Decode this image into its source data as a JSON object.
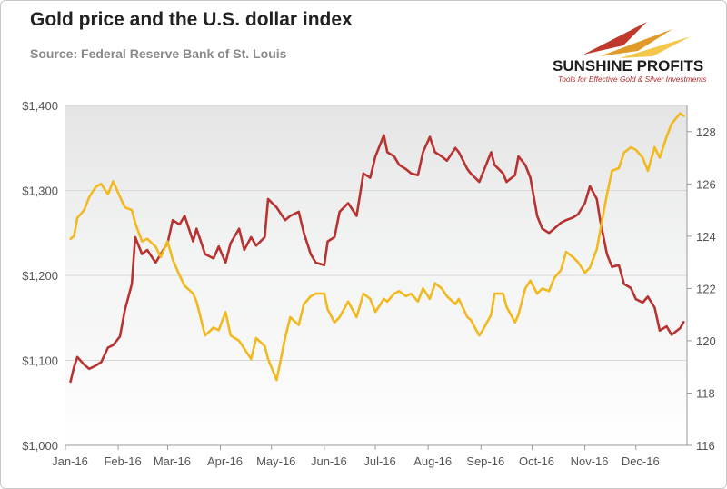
{
  "header": {
    "title": "Gold price and the U.S. dollar index",
    "subtitle": "Source: Federal Reserve Bank of St. Louis"
  },
  "logo": {
    "name": "SUNSHINE PROFITS",
    "tagline": "Tools for Effective Gold & Silver Investments"
  },
  "chart_data": {
    "type": "line",
    "title": "Gold price and the U.S. dollar index",
    "subtitle": "Source: Federal Reserve Bank of St. Louis",
    "x_ticks": [
      "Jan-16",
      "Feb-16",
      "Mar-16",
      "Apr-16",
      "May-16",
      "Jun-16",
      "Jul-16",
      "Aug-16",
      "Sep-16",
      "Oct-16",
      "Nov-16",
      "Dec-16"
    ],
    "y_left": {
      "ylim": [
        1000,
        1400
      ],
      "ticks": [
        "$1,000",
        "$1,100",
        "$1,200",
        "$1,300",
        "$1,400"
      ]
    },
    "y_right": {
      "ylim": [
        116,
        129
      ],
      "ticks": [
        "116",
        "118",
        "120",
        "122",
        "124",
        "126",
        "128"
      ]
    },
    "legend": "none",
    "series": [
      {
        "axis": "left",
        "color": "#b83232",
        "points": [
          [
            "2016-01-04",
            1075
          ],
          [
            "2016-01-06",
            1092
          ],
          [
            "2016-01-08",
            1104
          ],
          [
            "2016-01-12",
            1095
          ],
          [
            "2016-01-15",
            1090
          ],
          [
            "2016-01-19",
            1094
          ],
          [
            "2016-01-22",
            1098
          ],
          [
            "2016-01-26",
            1115
          ],
          [
            "2016-01-29",
            1118
          ],
          [
            "2016-02-02",
            1128
          ],
          [
            "2016-02-05",
            1160
          ],
          [
            "2016-02-09",
            1190
          ],
          [
            "2016-02-11",
            1245
          ],
          [
            "2016-02-15",
            1225
          ],
          [
            "2016-02-18",
            1230
          ],
          [
            "2016-02-23",
            1215
          ],
          [
            "2016-02-26",
            1225
          ],
          [
            "2016-03-01",
            1238
          ],
          [
            "2016-03-04",
            1265
          ],
          [
            "2016-03-08",
            1260
          ],
          [
            "2016-03-11",
            1270
          ],
          [
            "2016-03-16",
            1240
          ],
          [
            "2016-03-18",
            1255
          ],
          [
            "2016-03-23",
            1225
          ],
          [
            "2016-03-28",
            1220
          ],
          [
            "2016-03-31",
            1234
          ],
          [
            "2016-04-04",
            1215
          ],
          [
            "2016-04-07",
            1238
          ],
          [
            "2016-04-12",
            1255
          ],
          [
            "2016-04-15",
            1230
          ],
          [
            "2016-04-19",
            1245
          ],
          [
            "2016-04-22",
            1235
          ],
          [
            "2016-04-27",
            1245
          ],
          [
            "2016-04-29",
            1290
          ],
          [
            "2016-05-04",
            1280
          ],
          [
            "2016-05-09",
            1265
          ],
          [
            "2016-05-12",
            1270
          ],
          [
            "2016-05-17",
            1275
          ],
          [
            "2016-05-20",
            1250
          ],
          [
            "2016-05-24",
            1225
          ],
          [
            "2016-05-27",
            1215
          ],
          [
            "2016-06-01",
            1212
          ],
          [
            "2016-06-03",
            1240
          ],
          [
            "2016-06-07",
            1245
          ],
          [
            "2016-06-10",
            1275
          ],
          [
            "2016-06-15",
            1285
          ],
          [
            "2016-06-20",
            1270
          ],
          [
            "2016-06-24",
            1320
          ],
          [
            "2016-06-28",
            1315
          ],
          [
            "2016-07-01",
            1340
          ],
          [
            "2016-07-06",
            1365
          ],
          [
            "2016-07-08",
            1345
          ],
          [
            "2016-07-12",
            1340
          ],
          [
            "2016-07-15",
            1330
          ],
          [
            "2016-07-19",
            1325
          ],
          [
            "2016-07-22",
            1320
          ],
          [
            "2016-07-26",
            1318
          ],
          [
            "2016-07-29",
            1345
          ],
          [
            "2016-08-02",
            1363
          ],
          [
            "2016-08-05",
            1345
          ],
          [
            "2016-08-09",
            1340
          ],
          [
            "2016-08-12",
            1335
          ],
          [
            "2016-08-17",
            1350
          ],
          [
            "2016-08-19",
            1345
          ],
          [
            "2016-08-24",
            1325
          ],
          [
            "2016-08-26",
            1320
          ],
          [
            "2016-08-31",
            1310
          ],
          [
            "2016-09-02",
            1320
          ],
          [
            "2016-09-07",
            1345
          ],
          [
            "2016-09-09",
            1330
          ],
          [
            "2016-09-14",
            1320
          ],
          [
            "2016-09-16",
            1310
          ],
          [
            "2016-09-21",
            1318
          ],
          [
            "2016-09-23",
            1340
          ],
          [
            "2016-09-27",
            1330
          ],
          [
            "2016-09-30",
            1315
          ],
          [
            "2016-10-04",
            1270
          ],
          [
            "2016-10-07",
            1255
          ],
          [
            "2016-10-11",
            1250
          ],
          [
            "2016-10-14",
            1255
          ],
          [
            "2016-10-18",
            1262
          ],
          [
            "2016-10-21",
            1265
          ],
          [
            "2016-10-25",
            1268
          ],
          [
            "2016-10-28",
            1272
          ],
          [
            "2016-11-01",
            1285
          ],
          [
            "2016-11-04",
            1305
          ],
          [
            "2016-11-08",
            1290
          ],
          [
            "2016-11-10",
            1265
          ],
          [
            "2016-11-14",
            1225
          ],
          [
            "2016-11-17",
            1210
          ],
          [
            "2016-11-21",
            1212
          ],
          [
            "2016-11-24",
            1190
          ],
          [
            "2016-11-28",
            1185
          ],
          [
            "2016-12-01",
            1172
          ],
          [
            "2016-12-05",
            1168
          ],
          [
            "2016-12-08",
            1175
          ],
          [
            "2016-12-12",
            1162
          ],
          [
            "2016-12-15",
            1135
          ],
          [
            "2016-12-19",
            1140
          ],
          [
            "2016-12-22",
            1130
          ],
          [
            "2016-12-27",
            1138
          ],
          [
            "2016-12-29",
            1145
          ]
        ]
      },
      {
        "axis": "right",
        "color": "#f2b91e",
        "points": [
          [
            "2016-01-04",
            123.9
          ],
          [
            "2016-01-06",
            124.0
          ],
          [
            "2016-01-08",
            124.7
          ],
          [
            "2016-01-12",
            125.0
          ],
          [
            "2016-01-15",
            125.5
          ],
          [
            "2016-01-19",
            125.9
          ],
          [
            "2016-01-22",
            126.0
          ],
          [
            "2016-01-26",
            125.6
          ],
          [
            "2016-01-29",
            126.1
          ],
          [
            "2016-02-02",
            125.5
          ],
          [
            "2016-02-05",
            125.1
          ],
          [
            "2016-02-09",
            125.0
          ],
          [
            "2016-02-11",
            124.5
          ],
          [
            "2016-02-15",
            123.8
          ],
          [
            "2016-02-18",
            123.9
          ],
          [
            "2016-02-23",
            123.6
          ],
          [
            "2016-02-26",
            123.2
          ],
          [
            "2016-03-01",
            123.8
          ],
          [
            "2016-03-04",
            123.1
          ],
          [
            "2016-03-08",
            122.5
          ],
          [
            "2016-03-11",
            122.1
          ],
          [
            "2016-03-16",
            121.8
          ],
          [
            "2016-03-18",
            121.5
          ],
          [
            "2016-03-23",
            120.2
          ],
          [
            "2016-03-28",
            120.5
          ],
          [
            "2016-03-31",
            120.4
          ],
          [
            "2016-04-04",
            121.1
          ],
          [
            "2016-04-07",
            120.2
          ],
          [
            "2016-04-12",
            120.0
          ],
          [
            "2016-04-15",
            119.7
          ],
          [
            "2016-04-19",
            119.3
          ],
          [
            "2016-04-22",
            120.1
          ],
          [
            "2016-04-27",
            119.8
          ],
          [
            "2016-04-29",
            119.3
          ],
          [
            "2016-05-04",
            118.5
          ],
          [
            "2016-05-09",
            120.1
          ],
          [
            "2016-05-12",
            120.9
          ],
          [
            "2016-05-17",
            120.6
          ],
          [
            "2016-05-20",
            121.4
          ],
          [
            "2016-05-24",
            121.7
          ],
          [
            "2016-05-27",
            121.8
          ],
          [
            "2016-06-01",
            121.8
          ],
          [
            "2016-06-03",
            121.2
          ],
          [
            "2016-06-07",
            120.7
          ],
          [
            "2016-06-10",
            120.9
          ],
          [
            "2016-06-15",
            121.5
          ],
          [
            "2016-06-20",
            120.9
          ],
          [
            "2016-06-24",
            121.8
          ],
          [
            "2016-06-28",
            121.6
          ],
          [
            "2016-07-01",
            121.1
          ],
          [
            "2016-07-06",
            121.6
          ],
          [
            "2016-07-08",
            121.5
          ],
          [
            "2016-07-12",
            121.8
          ],
          [
            "2016-07-15",
            121.9
          ],
          [
            "2016-07-19",
            121.7
          ],
          [
            "2016-07-22",
            121.8
          ],
          [
            "2016-07-26",
            121.5
          ],
          [
            "2016-07-29",
            122.0
          ],
          [
            "2016-08-02",
            121.6
          ],
          [
            "2016-08-05",
            122.2
          ],
          [
            "2016-08-09",
            122.0
          ],
          [
            "2016-08-12",
            121.7
          ],
          [
            "2016-08-17",
            121.4
          ],
          [
            "2016-08-19",
            121.6
          ],
          [
            "2016-08-24",
            120.9
          ],
          [
            "2016-08-26",
            120.8
          ],
          [
            "2016-08-31",
            120.2
          ],
          [
            "2016-09-02",
            120.4
          ],
          [
            "2016-09-07",
            121.0
          ],
          [
            "2016-09-09",
            121.8
          ],
          [
            "2016-09-14",
            121.8
          ],
          [
            "2016-09-16",
            121.3
          ],
          [
            "2016-09-21",
            120.7
          ],
          [
            "2016-09-23",
            121.0
          ],
          [
            "2016-09-27",
            122.0
          ],
          [
            "2016-09-30",
            122.3
          ],
          [
            "2016-10-04",
            121.8
          ],
          [
            "2016-10-07",
            122.0
          ],
          [
            "2016-10-11",
            121.9
          ],
          [
            "2016-10-14",
            122.4
          ],
          [
            "2016-10-18",
            122.7
          ],
          [
            "2016-10-21",
            123.4
          ],
          [
            "2016-10-25",
            123.2
          ],
          [
            "2016-10-28",
            123.0
          ],
          [
            "2016-11-01",
            122.6
          ],
          [
            "2016-11-04",
            122.8
          ],
          [
            "2016-11-08",
            123.5
          ],
          [
            "2016-11-10",
            124.2
          ],
          [
            "2016-11-14",
            125.6
          ],
          [
            "2016-11-17",
            126.5
          ],
          [
            "2016-11-21",
            126.6
          ],
          [
            "2016-11-24",
            127.2
          ],
          [
            "2016-11-28",
            127.4
          ],
          [
            "2016-12-01",
            127.3
          ],
          [
            "2016-12-05",
            127.0
          ],
          [
            "2016-12-08",
            126.5
          ],
          [
            "2016-12-12",
            127.4
          ],
          [
            "2016-12-15",
            127.0
          ],
          [
            "2016-12-19",
            127.8
          ],
          [
            "2016-12-22",
            128.3
          ],
          [
            "2016-12-27",
            128.7
          ],
          [
            "2016-12-29",
            128.6
          ]
        ]
      }
    ]
  }
}
